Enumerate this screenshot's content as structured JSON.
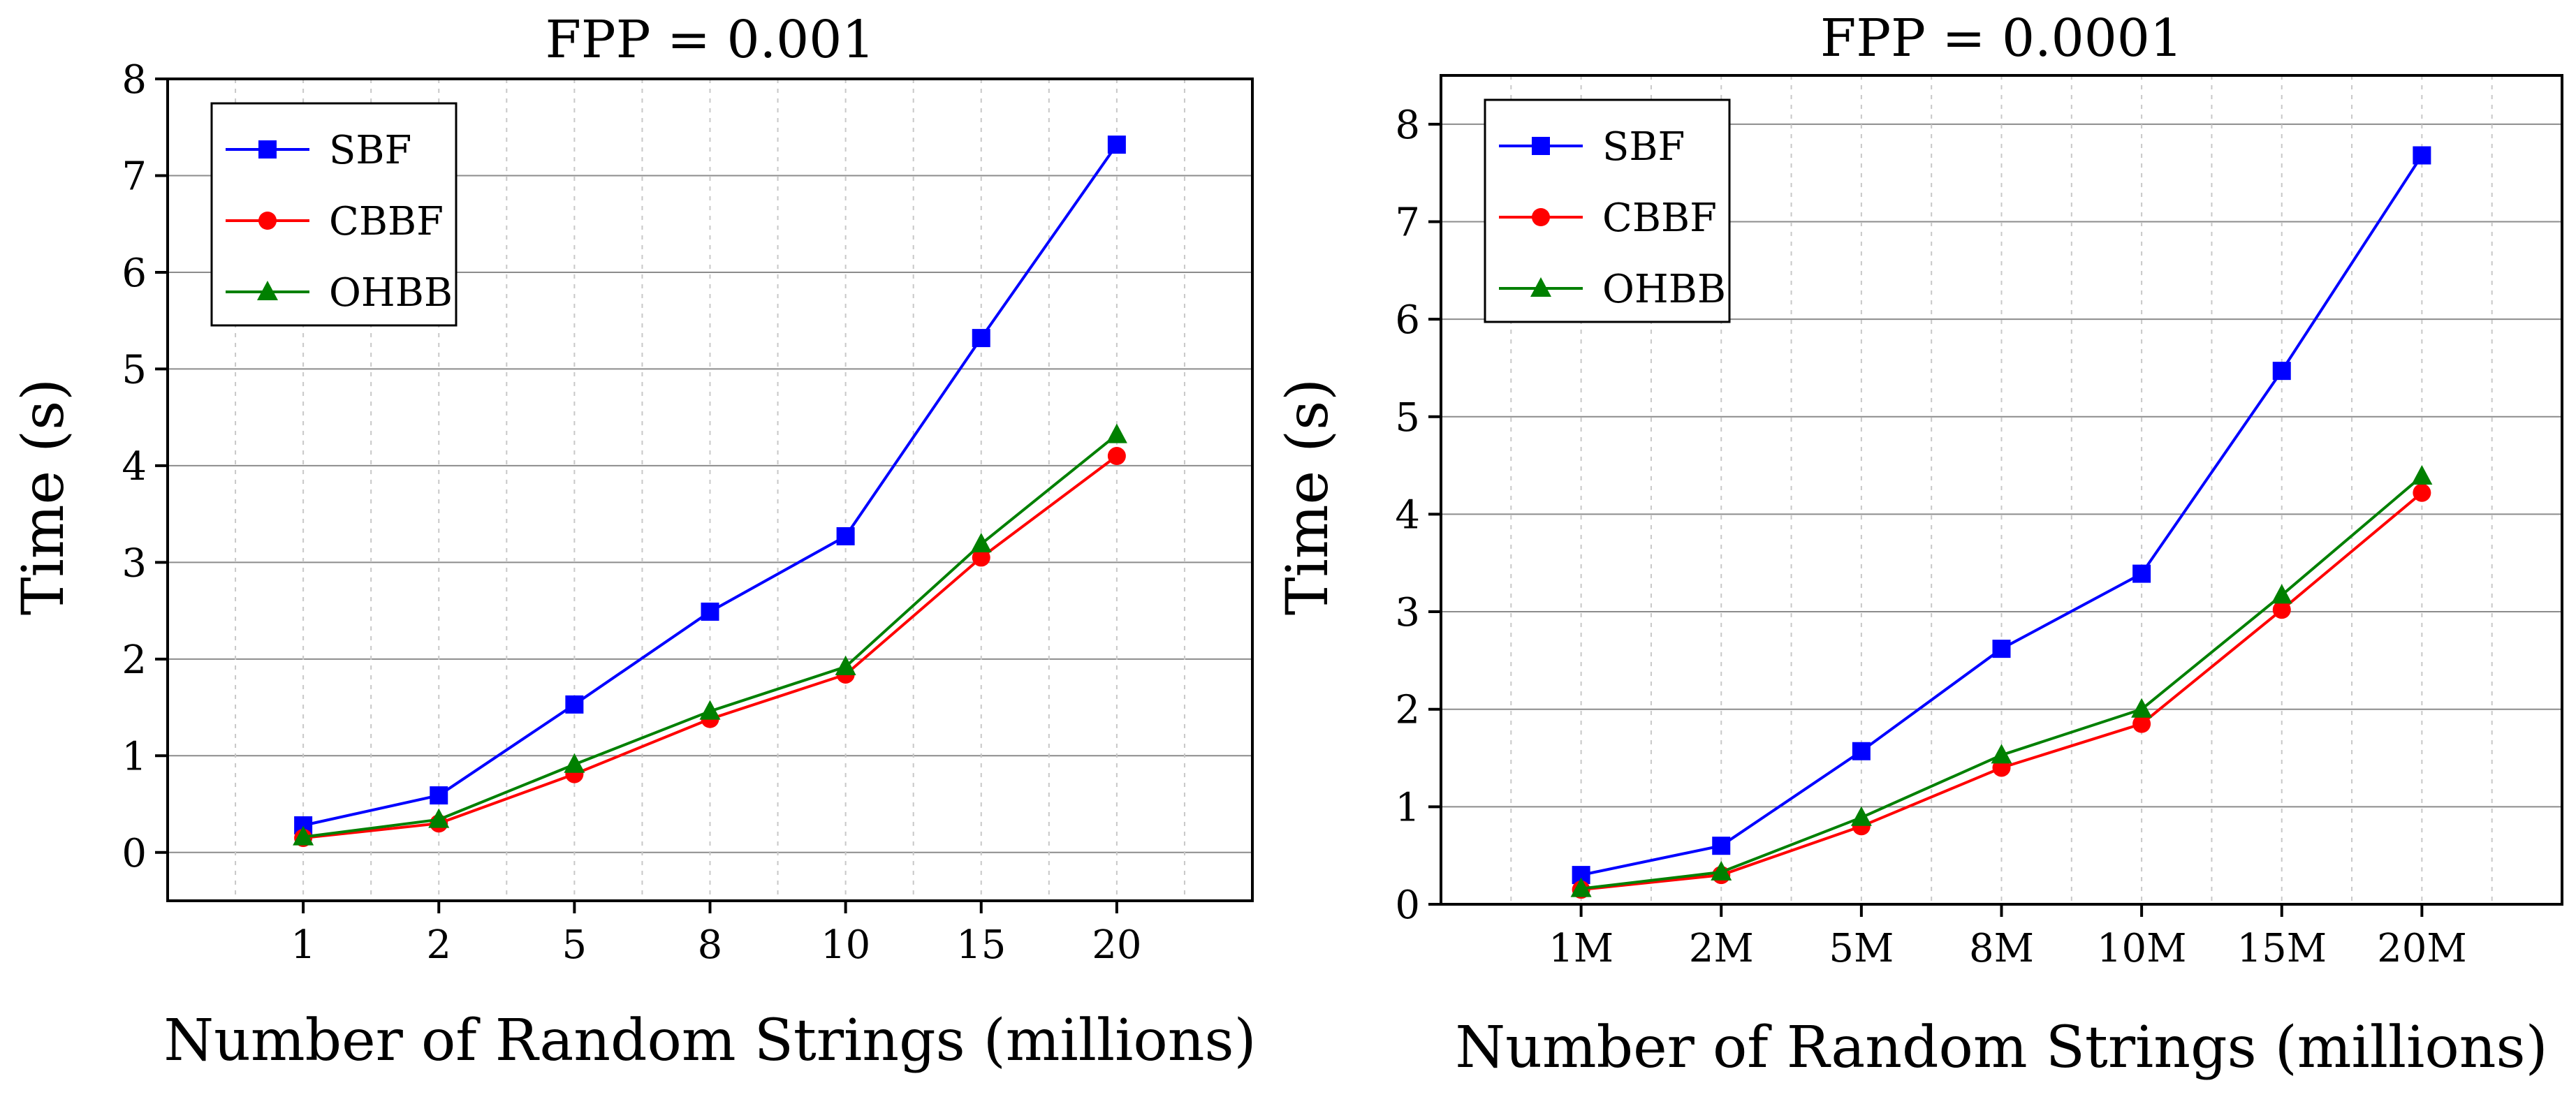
{
  "chart_data": [
    {
      "type": "line",
      "title": "FPP = 0.001",
      "xlabel": "Number of Random Strings (millions)",
      "ylabel": "Time (s)",
      "categories": [
        "1",
        "2",
        "5",
        "8",
        "10",
        "15",
        "20"
      ],
      "ylim": [
        -0.5,
        8
      ],
      "yticks": [
        0,
        1,
        2,
        3,
        4,
        5,
        6,
        7,
        8
      ],
      "grid": true,
      "legend_position": "top-left",
      "series": [
        {
          "name": "SBF",
          "color": "#0000ff",
          "marker": "square",
          "values": [
            0.28,
            0.59,
            1.53,
            2.49,
            3.27,
            5.32,
            7.32
          ]
        },
        {
          "name": "CBBF",
          "color": "#ff0000",
          "marker": "circle",
          "values": [
            0.15,
            0.3,
            0.81,
            1.38,
            1.84,
            3.05,
            4.1
          ]
        },
        {
          "name": "OHBB",
          "color": "#008000",
          "marker": "triangle",
          "values": [
            0.16,
            0.34,
            0.91,
            1.46,
            1.92,
            3.19,
            4.32
          ]
        }
      ]
    },
    {
      "type": "line",
      "title": "FPP = 0.0001",
      "xlabel": "Number of Random Strings (millions)",
      "ylabel": "Time (s)",
      "categories": [
        "1M",
        "2M",
        "5M",
        "8M",
        "10M",
        "15M",
        "20M"
      ],
      "ylim": [
        0,
        8.5
      ],
      "yticks": [
        0,
        1,
        2,
        3,
        4,
        5,
        6,
        7,
        8
      ],
      "grid": true,
      "legend_position": "top-left",
      "series": [
        {
          "name": "SBF",
          "color": "#0000ff",
          "marker": "square",
          "values": [
            0.3,
            0.6,
            1.57,
            2.62,
            3.39,
            5.47,
            7.68
          ]
        },
        {
          "name": "CBBF",
          "color": "#ff0000",
          "marker": "circle",
          "values": [
            0.15,
            0.3,
            0.8,
            1.4,
            1.85,
            3.02,
            4.22
          ]
        },
        {
          "name": "OHBB",
          "color": "#008000",
          "marker": "triangle",
          "values": [
            0.16,
            0.33,
            0.89,
            1.53,
            2.0,
            3.17,
            4.39
          ]
        }
      ]
    }
  ]
}
